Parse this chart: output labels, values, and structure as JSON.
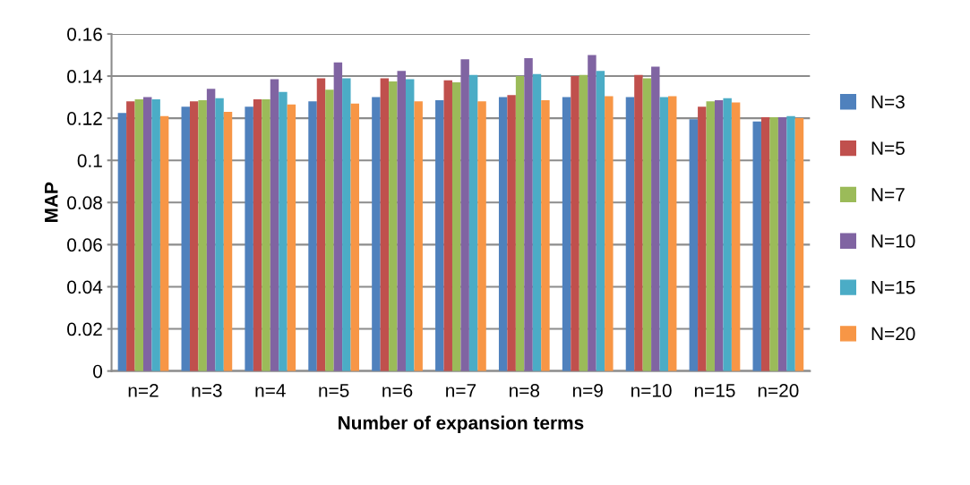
{
  "chart_data": {
    "type": "bar",
    "xlabel": "Number of expansion terms",
    "ylabel": "MAP",
    "categories": [
      "n=2",
      "n=3",
      "n=4",
      "n=5",
      "n=6",
      "n=7",
      "n=8",
      "n=9",
      "n=10",
      "n=15",
      "n=20"
    ],
    "series": [
      {
        "name": "N=3",
        "color": "#4f81bd",
        "values": [
          0.1225,
          0.1255,
          0.1255,
          0.128,
          0.13,
          0.1285,
          0.13,
          0.13,
          0.13,
          0.1195,
          0.1185
        ]
      },
      {
        "name": "N=5",
        "color": "#c0504d",
        "values": [
          0.128,
          0.128,
          0.129,
          0.139,
          0.139,
          0.138,
          0.131,
          0.14,
          0.1405,
          0.1255,
          0.1205
        ]
      },
      {
        "name": "N=7",
        "color": "#9bbb59",
        "values": [
          0.129,
          0.1285,
          0.129,
          0.1335,
          0.1375,
          0.137,
          0.14,
          0.1405,
          0.139,
          0.128,
          0.1205
        ]
      },
      {
        "name": "N=10",
        "color": "#8064a2",
        "values": [
          0.13,
          0.134,
          0.1385,
          0.1465,
          0.1425,
          0.148,
          0.1485,
          0.15,
          0.1445,
          0.1285,
          0.1205
        ]
      },
      {
        "name": "N=15",
        "color": "#4bacc6",
        "values": [
          0.129,
          0.1295,
          0.1325,
          0.139,
          0.1385,
          0.1405,
          0.141,
          0.1425,
          0.13,
          0.1295,
          0.121
        ]
      },
      {
        "name": "N=20",
        "color": "#f79646",
        "values": [
          0.121,
          0.123,
          0.1265,
          0.127,
          0.128,
          0.128,
          0.1285,
          0.1305,
          0.1305,
          0.1275,
          0.12
        ]
      }
    ],
    "ylim": [
      0,
      0.16
    ],
    "yticks": [
      {
        "value": 0,
        "label": "0"
      },
      {
        "value": 0.02,
        "label": "0.02"
      },
      {
        "value": 0.04,
        "label": "0.04"
      },
      {
        "value": 0.06,
        "label": "0.06"
      },
      {
        "value": 0.08,
        "label": "0.08"
      },
      {
        "value": 0.1,
        "label": "0.1"
      },
      {
        "value": 0.12,
        "label": "0.12"
      },
      {
        "value": 0.14,
        "label": "0.14"
      },
      {
        "value": 0.16,
        "label": "0.16"
      }
    ],
    "grid": "y",
    "legend": "right"
  }
}
